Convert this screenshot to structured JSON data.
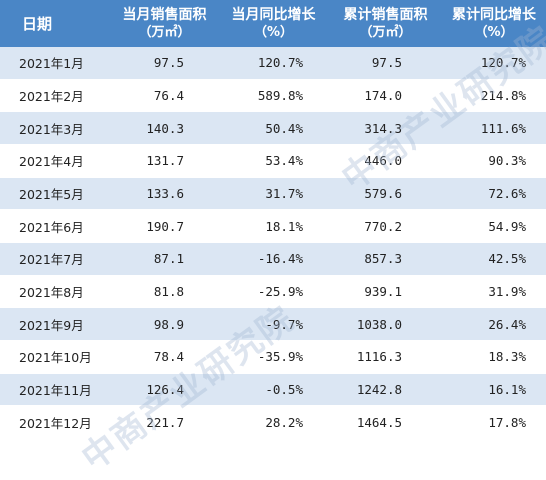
{
  "table": {
    "headers": {
      "date": "日期",
      "monthly_area": "当月销售面积",
      "monthly_area_unit": "（万㎡）",
      "monthly_yoy": "当月同比增长",
      "monthly_yoy_unit": "（%）",
      "cumulative_area": "累计销售面积",
      "cumulative_area_unit": "（万㎡）",
      "cumulative_yoy": "累计同比增长",
      "cumulative_yoy_unit": "（%）"
    },
    "rows": [
      {
        "date": "2021年1月",
        "monthly_area": "97.5",
        "monthly_yoy": "120.7%",
        "cumulative_area": "97.5",
        "cumulative_yoy": "120.7%"
      },
      {
        "date": "2021年2月",
        "monthly_area": "76.4",
        "monthly_yoy": "589.8%",
        "cumulative_area": "174.0",
        "cumulative_yoy": "214.8%"
      },
      {
        "date": "2021年3月",
        "monthly_area": "140.3",
        "monthly_yoy": "50.4%",
        "cumulative_area": "314.3",
        "cumulative_yoy": "111.6%"
      },
      {
        "date": "2021年4月",
        "monthly_area": "131.7",
        "monthly_yoy": "53.4%",
        "cumulative_area": "446.0",
        "cumulative_yoy": "90.3%"
      },
      {
        "date": "2021年5月",
        "monthly_area": "133.6",
        "monthly_yoy": "31.7%",
        "cumulative_area": "579.6",
        "cumulative_yoy": "72.6%"
      },
      {
        "date": "2021年6月",
        "monthly_area": "190.7",
        "monthly_yoy": "18.1%",
        "cumulative_area": "770.2",
        "cumulative_yoy": "54.9%"
      },
      {
        "date": "2021年7月",
        "monthly_area": "87.1",
        "monthly_yoy": "-16.4%",
        "cumulative_area": "857.3",
        "cumulative_yoy": "42.5%"
      },
      {
        "date": "2021年8月",
        "monthly_area": "81.8",
        "monthly_yoy": "-25.9%",
        "cumulative_area": "939.1",
        "cumulative_yoy": "31.9%"
      },
      {
        "date": "2021年9月",
        "monthly_area": "98.9",
        "monthly_yoy": "-9.7%",
        "cumulative_area": "1038.0",
        "cumulative_yoy": "26.4%"
      },
      {
        "date": "2021年10月",
        "monthly_area": "78.4",
        "monthly_yoy": "-35.9%",
        "cumulative_area": "1116.3",
        "cumulative_yoy": "18.3%"
      },
      {
        "date": "2021年11月",
        "monthly_area": "126.4",
        "monthly_yoy": "-0.5%",
        "cumulative_area": "1242.8",
        "cumulative_yoy": "16.1%"
      },
      {
        "date": "2021年12月",
        "monthly_area": "221.7",
        "monthly_yoy": "28.2%",
        "cumulative_area": "1464.5",
        "cumulative_yoy": "17.8%"
      }
    ]
  },
  "watermark": {
    "text": "中商产业研究院"
  },
  "colors": {
    "header_bg": "#4a86c6",
    "stripe_bg": "#dbe6f3"
  }
}
